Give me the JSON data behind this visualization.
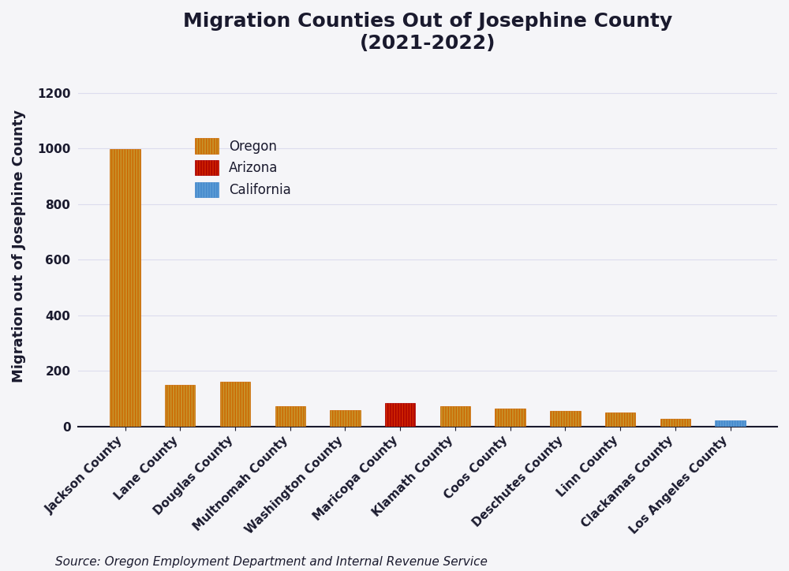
{
  "title": "Migration Counties Out of Josephine County\n(2021-2022)",
  "ylabel": "Migration out of Josephine County",
  "source": "Source: Oregon Employment Department and Internal Revenue Service",
  "categories": [
    "Jackson County",
    "Lane County",
    "Douglas County",
    "Multnomah County",
    "Washington County",
    "Maricopa County",
    "Klamath County",
    "Coos County",
    "Deschutes County",
    "Linn County",
    "Clackamas County",
    "Los Angeles County"
  ],
  "values": [
    998,
    150,
    162,
    73,
    60,
    83,
    72,
    63,
    55,
    50,
    28,
    22
  ],
  "bar_facecolors": [
    "#C8922A",
    "#C8922A",
    "#C8922A",
    "#C8922A",
    "#C8922A",
    "#CC2200",
    "#C8922A",
    "#C8922A",
    "#C8922A",
    "#C8922A",
    "#C8922A",
    "#5B9BD5"
  ],
  "bar_edgecolors": [
    "#CC6600",
    "#CC6600",
    "#CC6600",
    "#CC6600",
    "#CC6600",
    "#AA0000",
    "#CC6600",
    "#CC6600",
    "#CC6600",
    "#CC6600",
    "#CC6600",
    "#4488CC"
  ],
  "legend_labels": [
    "Oregon",
    "Arizona",
    "California"
  ],
  "legend_facecolors": [
    "#C8922A",
    "#CC2200",
    "#5B9BD5"
  ],
  "legend_edgecolors": [
    "#CC6600",
    "#AA0000",
    "#4488CC"
  ],
  "ylim": [
    0,
    1300
  ],
  "yticks": [
    0,
    200,
    400,
    600,
    800,
    1000,
    1200
  ],
  "background_color": "#F5F5F8",
  "plot_bg_color": "#F5F5F8",
  "title_fontsize": 18,
  "axis_label_fontsize": 13,
  "tick_label_fontsize": 11,
  "source_fontsize": 11,
  "legend_fontsize": 12,
  "bar_width": 0.55
}
